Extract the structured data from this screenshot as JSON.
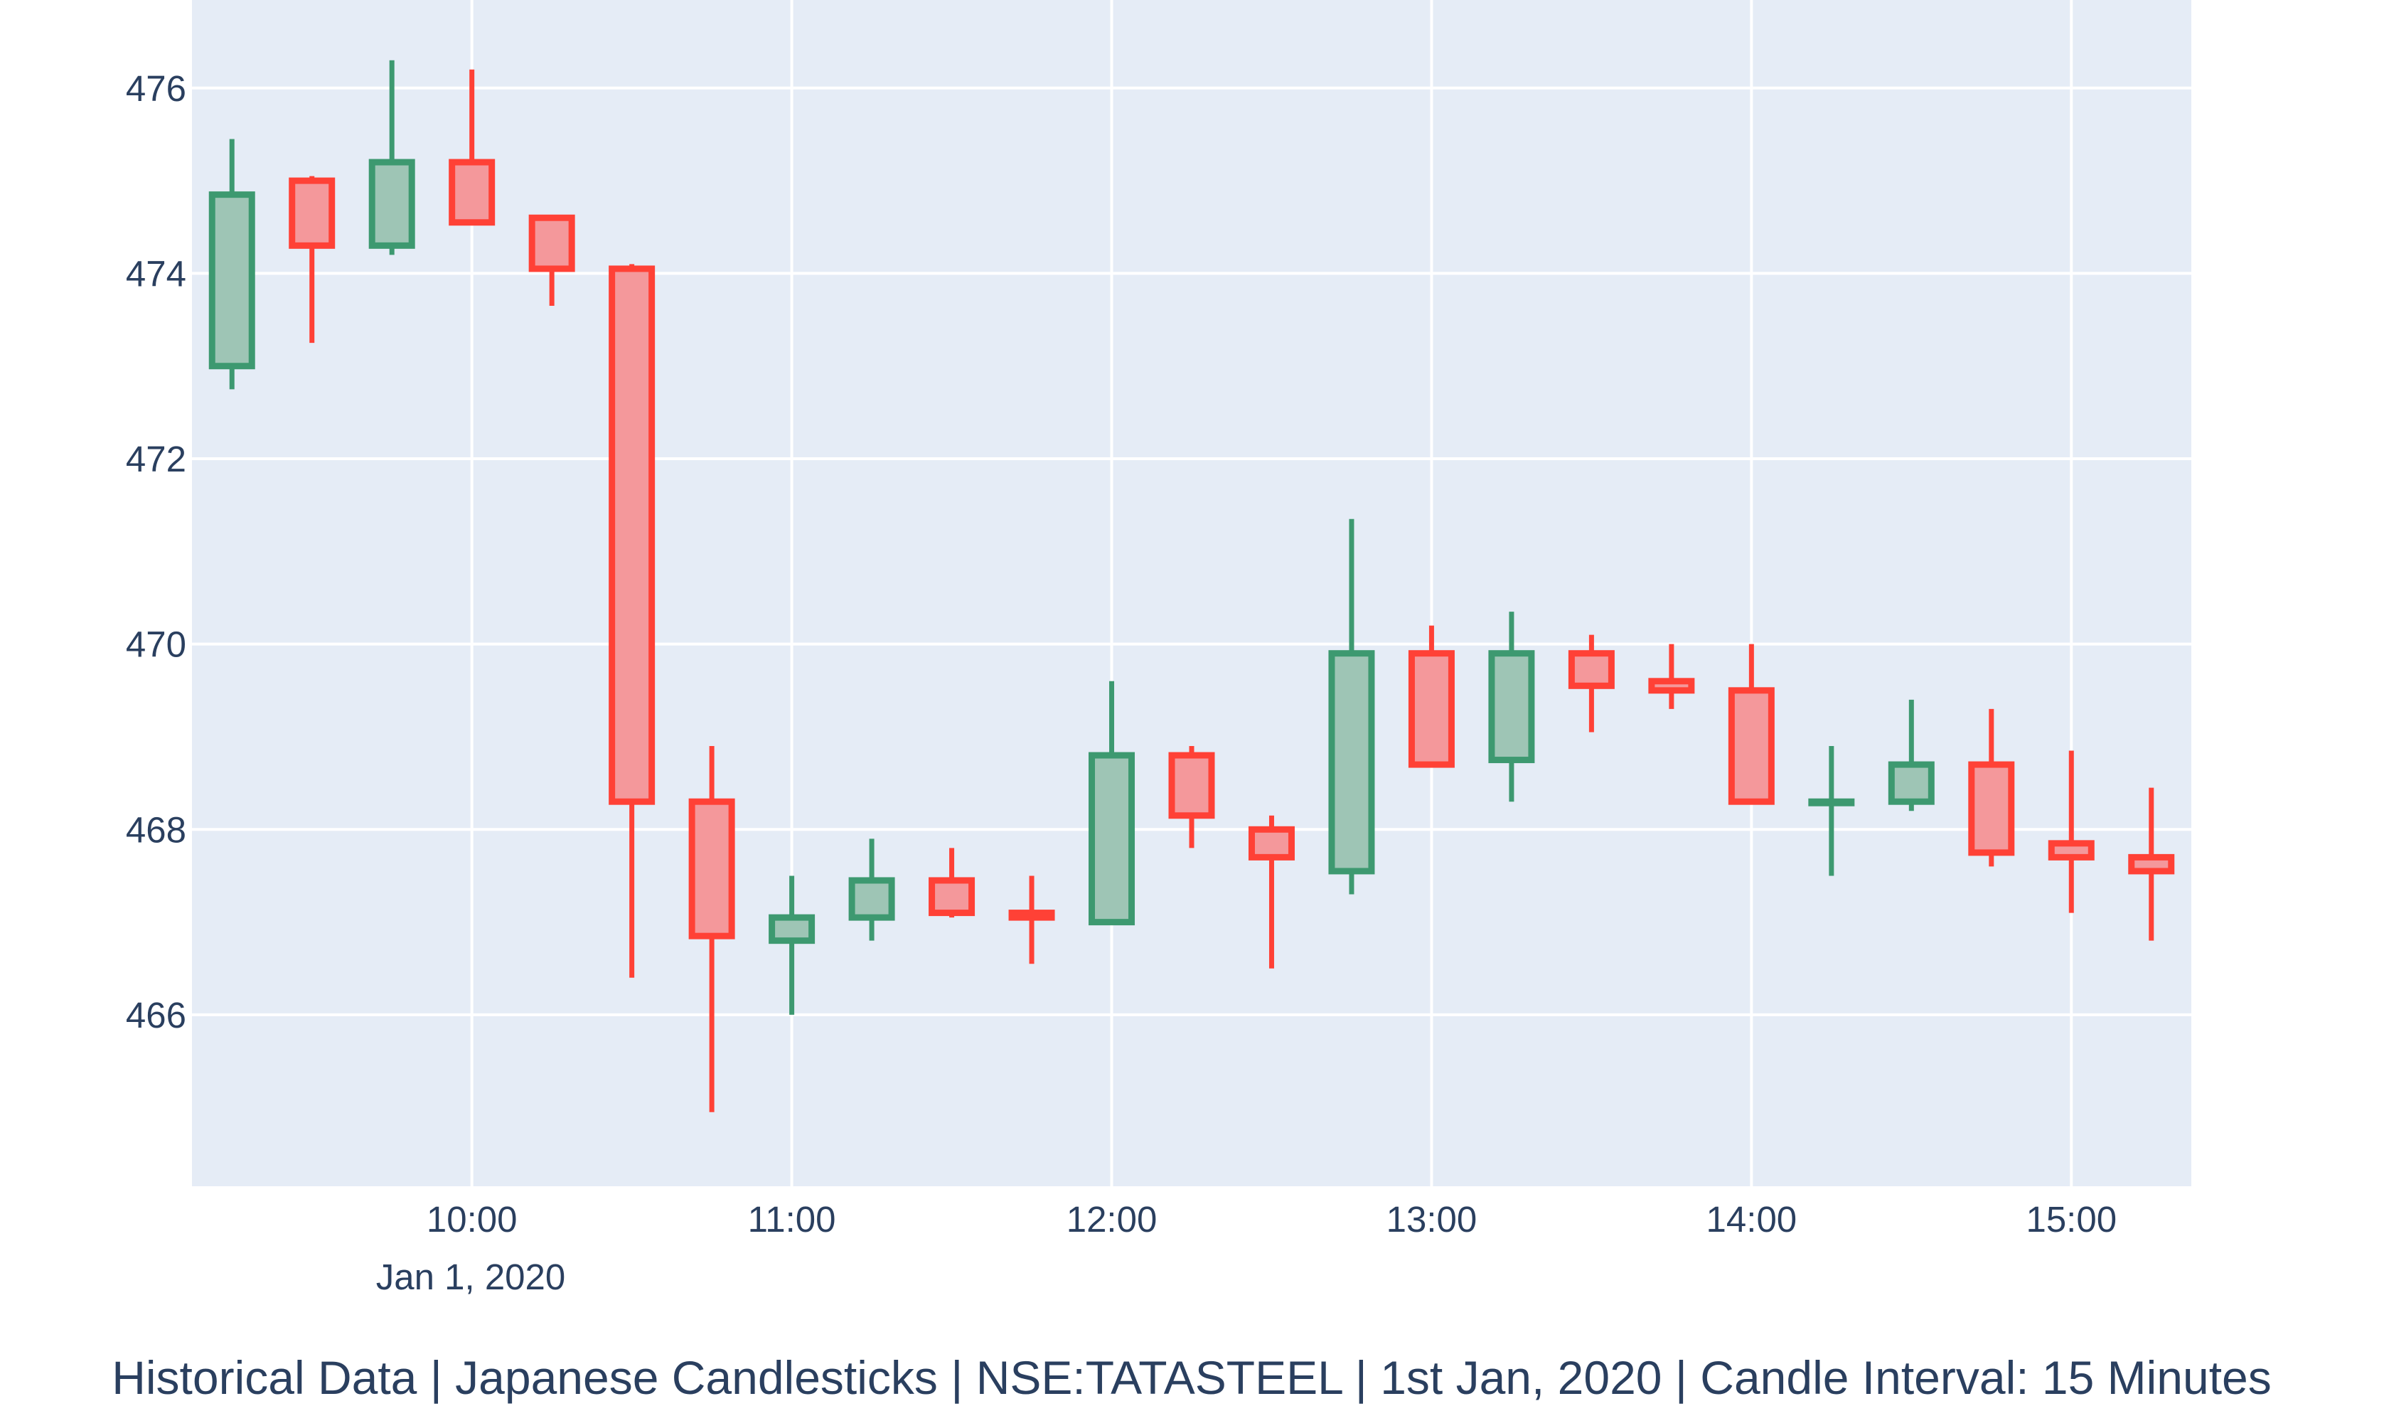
{
  "chart_data": {
    "type": "candlestick",
    "title": "",
    "caption": "Historical Data | Japanese Candlesticks | NSE:TATASTEEL | 1st Jan, 2020 | Candle Interval: 15 Minutes",
    "xlabel": "",
    "ylabel": "",
    "x_tick_labels": [
      "10:00",
      "11:00",
      "12:00",
      "13:00",
      "14:00",
      "15:00"
    ],
    "x_tick_hours": [
      10,
      11,
      12,
      13,
      14,
      15
    ],
    "x_date_label": "Jan 1, 2020",
    "y_tick_labels": [
      "466",
      "468",
      "470",
      "472",
      "474",
      "476"
    ],
    "y_tick_values": [
      466,
      468,
      470,
      472,
      474,
      476
    ],
    "ylim": [
      464.15,
      476.95
    ],
    "xlim_hours": [
      9.125,
      15.375
    ],
    "grid": true,
    "legend": "none",
    "colors": {
      "plot_bg": "#e5ecf6",
      "grid": "#ffffff",
      "increasing_line": "#3d9970",
      "increasing_fill": "#9ec5b5",
      "decreasing_line": "#ff4136",
      "decreasing_fill": "#f4989b",
      "text": "#2a3f5f"
    },
    "candles": [
      {
        "time": "09:15",
        "open": 473.0,
        "high": 475.45,
        "low": 472.75,
        "close": 474.85
      },
      {
        "time": "09:30",
        "open": 475.0,
        "high": 475.05,
        "low": 473.25,
        "close": 474.3
      },
      {
        "time": "09:45",
        "open": 474.3,
        "high": 476.3,
        "low": 474.2,
        "close": 475.2
      },
      {
        "time": "10:00",
        "open": 475.2,
        "high": 476.2,
        "low": 474.55,
        "close": 474.55
      },
      {
        "time": "10:15",
        "open": 474.6,
        "high": 474.6,
        "low": 473.65,
        "close": 474.05
      },
      {
        "time": "10:30",
        "open": 474.05,
        "high": 474.1,
        "low": 466.4,
        "close": 468.3
      },
      {
        "time": "10:45",
        "open": 468.3,
        "high": 468.9,
        "low": 464.95,
        "close": 466.85
      },
      {
        "time": "11:00",
        "open": 466.8,
        "high": 467.5,
        "low": 466.0,
        "close": 467.05
      },
      {
        "time": "11:15",
        "open": 467.05,
        "high": 467.9,
        "low": 466.8,
        "close": 467.45
      },
      {
        "time": "11:30",
        "open": 467.45,
        "high": 467.8,
        "low": 467.05,
        "close": 467.1
      },
      {
        "time": "11:45",
        "open": 467.1,
        "high": 467.5,
        "low": 466.55,
        "close": 467.05
      },
      {
        "time": "12:00",
        "open": 467.0,
        "high": 469.6,
        "low": 467.0,
        "close": 468.8
      },
      {
        "time": "12:15",
        "open": 468.8,
        "high": 468.9,
        "low": 467.8,
        "close": 468.15
      },
      {
        "time": "12:30",
        "open": 468.0,
        "high": 468.15,
        "low": 466.5,
        "close": 467.7
      },
      {
        "time": "12:45",
        "open": 467.55,
        "high": 471.35,
        "low": 467.3,
        "close": 469.9
      },
      {
        "time": "13:00",
        "open": 469.9,
        "high": 470.2,
        "low": 468.7,
        "close": 468.7
      },
      {
        "time": "13:15",
        "open": 468.75,
        "high": 470.35,
        "low": 468.3,
        "close": 469.9
      },
      {
        "time": "13:30",
        "open": 469.9,
        "high": 470.1,
        "low": 469.05,
        "close": 469.55
      },
      {
        "time": "13:45",
        "open": 469.6,
        "high": 470.0,
        "low": 469.3,
        "close": 469.5
      },
      {
        "time": "14:00",
        "open": 469.5,
        "high": 470.0,
        "low": 468.3,
        "close": 468.3
      },
      {
        "time": "14:15",
        "open": 468.3,
        "high": 468.9,
        "low": 467.5,
        "close": 468.3
      },
      {
        "time": "14:30",
        "open": 468.3,
        "high": 469.4,
        "low": 468.2,
        "close": 468.7
      },
      {
        "time": "14:45",
        "open": 468.7,
        "high": 469.3,
        "low": 467.6,
        "close": 467.75
      },
      {
        "time": "15:00",
        "open": 467.85,
        "high": 468.85,
        "low": 467.1,
        "close": 467.7
      },
      {
        "time": "15:15",
        "open": 467.7,
        "high": 468.45,
        "low": 466.8,
        "close": 467.55
      }
    ]
  }
}
